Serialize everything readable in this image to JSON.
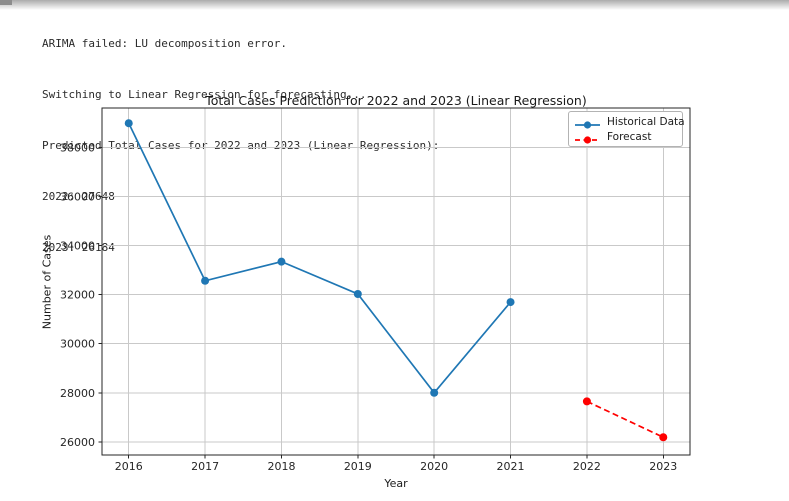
{
  "console": {
    "lines": [
      "ARIMA failed: LU decomposition error.",
      "Switching to Linear Regression for forecasting...",
      "Predicted Total Cases for 2022 and 2023 (Linear Regression):",
      "2022: 27648",
      "2023: 26184"
    ]
  },
  "chart_data": {
    "type": "line",
    "title": "Total Cases Prediction for 2022 and 2023 (Linear Regression)",
    "xlabel": "Year",
    "ylabel": "Number of Cases",
    "x_ticks": [
      2016,
      2017,
      2018,
      2019,
      2020,
      2021,
      2022,
      2023
    ],
    "y_ticks": [
      26000,
      28000,
      30000,
      32000,
      34000,
      36000,
      38000
    ],
    "xlim": [
      2015.65,
      2023.35
    ],
    "ylim": [
      25460,
      39620
    ],
    "grid": true,
    "legend_position": "upper right",
    "series": [
      {
        "name": "Historical Data",
        "color": "#1f77b4",
        "line_style": "solid",
        "marker": "circle",
        "x": [
          2016,
          2017,
          2018,
          2019,
          2020,
          2021
        ],
        "y": [
          39000,
          32570,
          33350,
          32030,
          28000,
          31700
        ]
      },
      {
        "name": "Forecast",
        "color": "#ff0000",
        "line_style": "dashed",
        "marker": "circle",
        "x": [
          2022,
          2023
        ],
        "y": [
          27648,
          26184
        ]
      }
    ]
  },
  "colors": {
    "axes": "#262626",
    "grid": "#c9c9c9",
    "console_text": "#2b2b2b",
    "legend_border": "#b3b3b3"
  }
}
